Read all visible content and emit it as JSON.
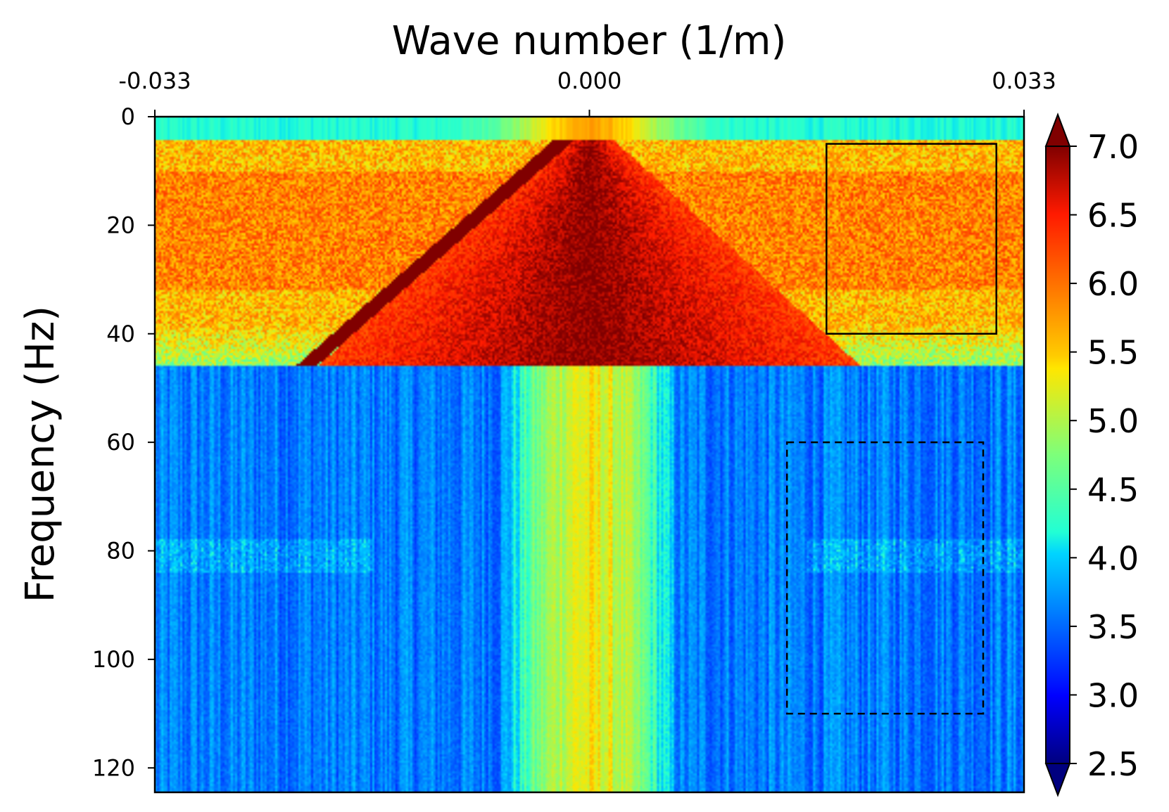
{
  "chart_data": {
    "type": "heatmap",
    "title": "",
    "xlabel": "Wave number (1/m)",
    "ylabel": "Frequency (Hz)",
    "x_axis_position": "top",
    "xlim": [
      -0.033,
      0.033
    ],
    "ylim": [
      124.5,
      0
    ],
    "xticks": [
      -0.033,
      0.0,
      0.033
    ],
    "xtick_labels": [
      "-0.033",
      "0.000",
      "0.033"
    ],
    "yticks": [
      0,
      20,
      40,
      60,
      80,
      100,
      120
    ],
    "ytick_labels": [
      "0",
      "20",
      "40",
      "60",
      "80",
      "100",
      "120"
    ],
    "colormap": "jet",
    "colorbar": {
      "vmin": 2.5,
      "vmax": 7.0,
      "extend": "both",
      "ticks": [
        2.5,
        3.0,
        3.5,
        4.0,
        4.5,
        5.0,
        5.5,
        6.0,
        6.5,
        7.0
      ],
      "tick_labels": [
        "2.5",
        "3.0",
        "3.5",
        "4.0",
        "4.5",
        "5.0",
        "5.5",
        "6.0",
        "6.5",
        "7.0"
      ]
    },
    "annotations": [
      {
        "shape": "rectangle",
        "style": "solid",
        "k_range": [
          0.018,
          0.0309
        ],
        "f_range": [
          5,
          40
        ]
      },
      {
        "shape": "rectangle",
        "style": "dashed",
        "k_range": [
          0.015,
          0.0299
        ],
        "f_range": [
          60,
          110
        ]
      }
    ]
  }
}
